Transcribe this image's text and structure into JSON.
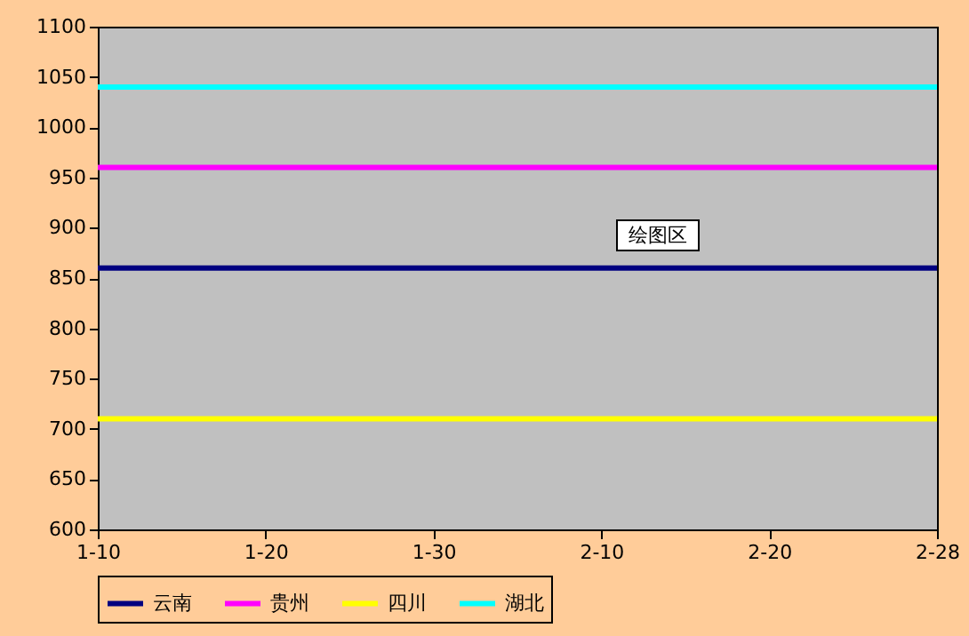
{
  "chart_data": {
    "type": "line",
    "categories": [
      "1-10",
      "1-20",
      "1-30",
      "2-10",
      "2-20",
      "2-28"
    ],
    "series": [
      {
        "name": "云南",
        "color": "#000080",
        "values": [
          860,
          860,
          860,
          860,
          860,
          860
        ]
      },
      {
        "name": "贵州",
        "color": "#ff00ff",
        "values": [
          960,
          960,
          960,
          960,
          960,
          960
        ]
      },
      {
        "name": "四川",
        "color": "#ffff00",
        "values": [
          710,
          710,
          710,
          710,
          710,
          710
        ]
      },
      {
        "name": "湖北",
        "color": "#00ffff",
        "values": [
          1040,
          1040,
          1040,
          1040,
          1040,
          1040
        ]
      }
    ],
    "ylim": [
      600,
      1100
    ],
    "yticks": [
      600,
      650,
      700,
      750,
      800,
      850,
      900,
      950,
      1000,
      1050,
      1100
    ],
    "grid": false,
    "legend": "bottom",
    "marker": "none",
    "line_style": "solid",
    "annotations": [
      "绘图区"
    ]
  }
}
